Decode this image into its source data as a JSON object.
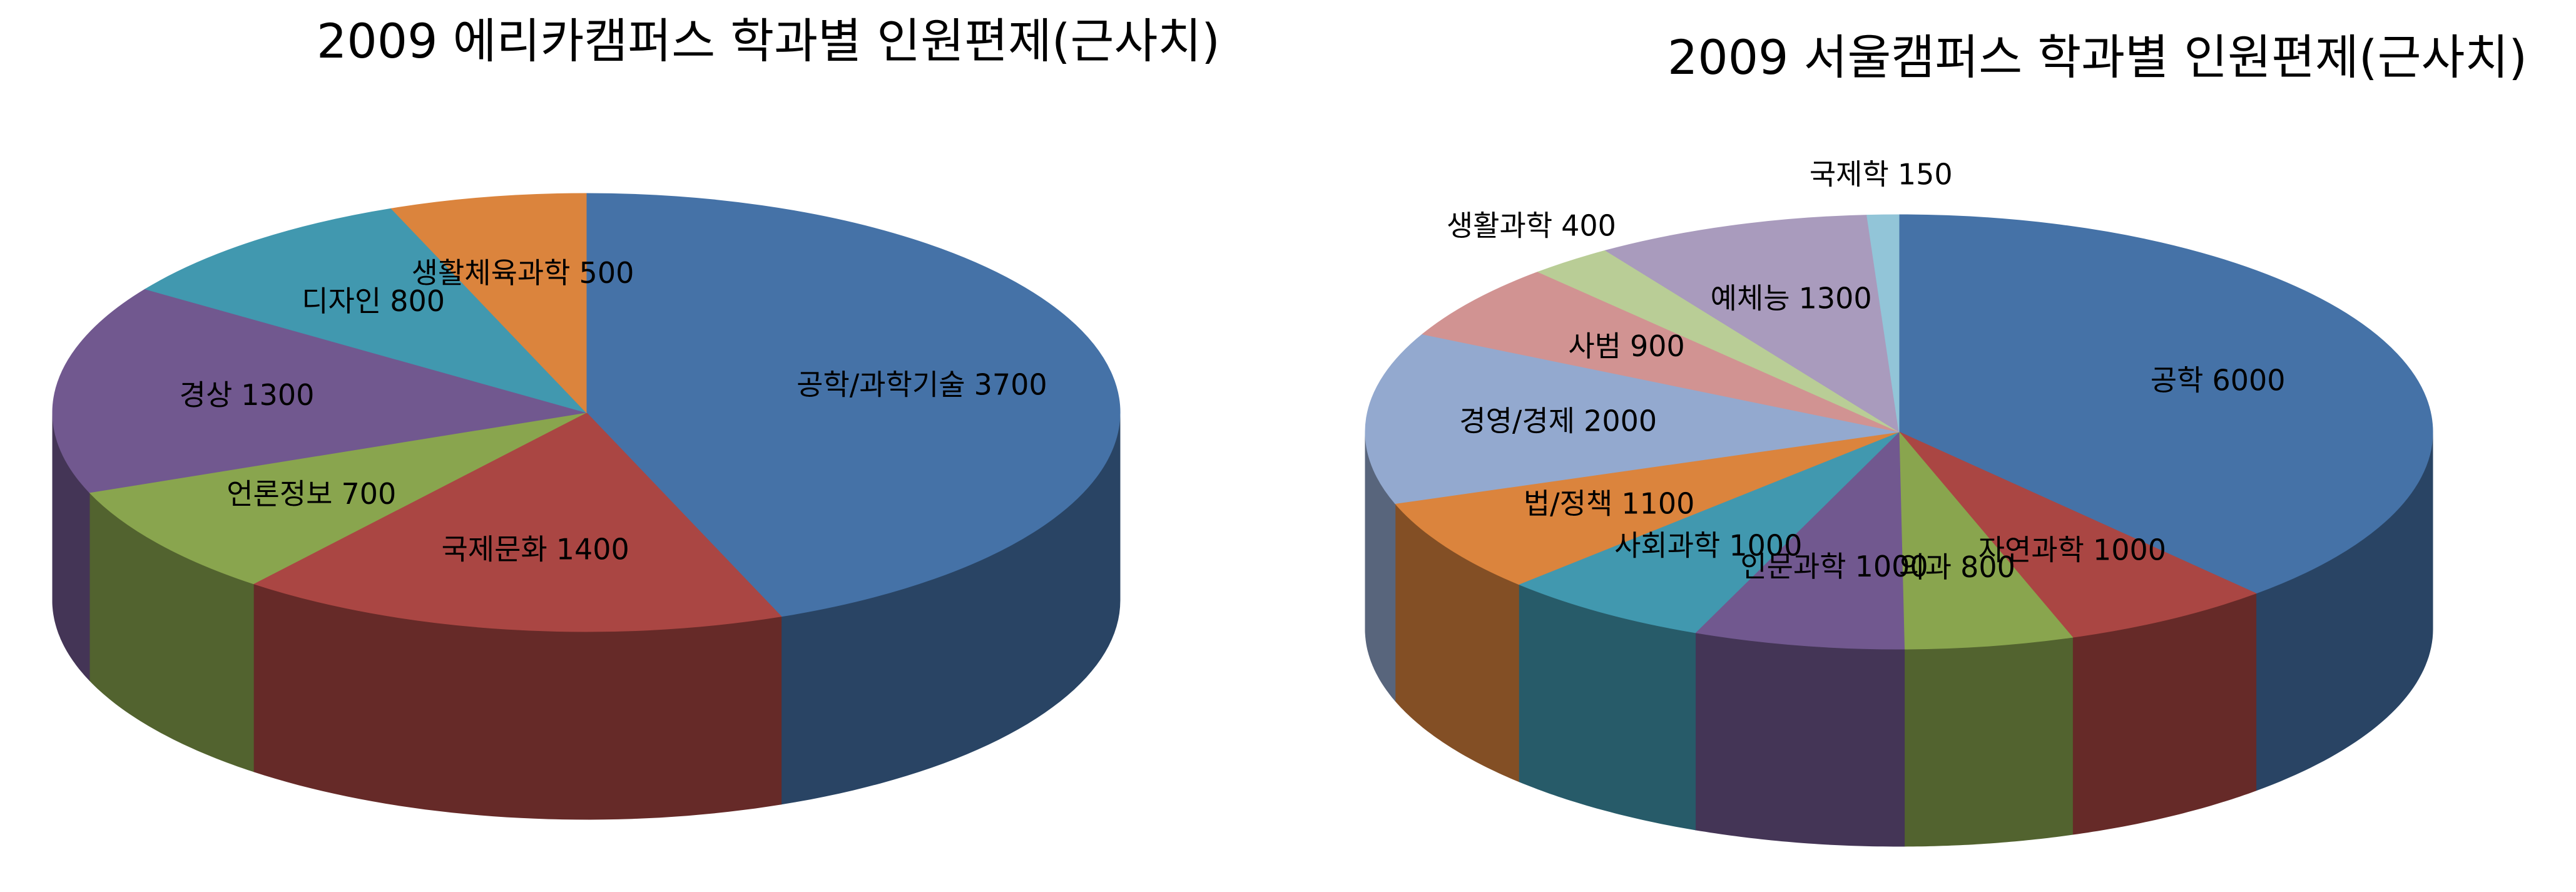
{
  "chart_data": [
    {
      "type": "pie3d",
      "title": "2009 에리카캠퍼스 학과별 인원편제(근사치)",
      "categories": [
        "공학/과학기술",
        "국제문화",
        "언론정보",
        "경상",
        "디자인",
        "생활체육과학"
      ],
      "values": [
        3700,
        1400,
        700,
        1300,
        800,
        500
      ],
      "colors": [
        "#4572a7",
        "#aa4643",
        "#89a54e",
        "#71588f",
        "#4198af",
        "#db843d"
      ]
    },
    {
      "type": "pie3d",
      "title": "2009 서울캠퍼스 학과별 인원편제(근사치)",
      "categories": [
        "공학",
        "자연과학",
        "의과",
        "인문과학",
        "사회과학",
        "법/정책",
        "경영/경제",
        "사범",
        "생활과학",
        "예체능",
        "국제학"
      ],
      "values": [
        6000,
        1000,
        800,
        1000,
        1000,
        1100,
        2000,
        900,
        400,
        1300,
        150
      ],
      "colors": [
        "#4572a7",
        "#aa4643",
        "#89a54e",
        "#71588f",
        "#4198af",
        "#db843d",
        "#93a9cf",
        "#d19392",
        "#b9cd96",
        "#a99bbd",
        "#92c5d8"
      ]
    }
  ]
}
